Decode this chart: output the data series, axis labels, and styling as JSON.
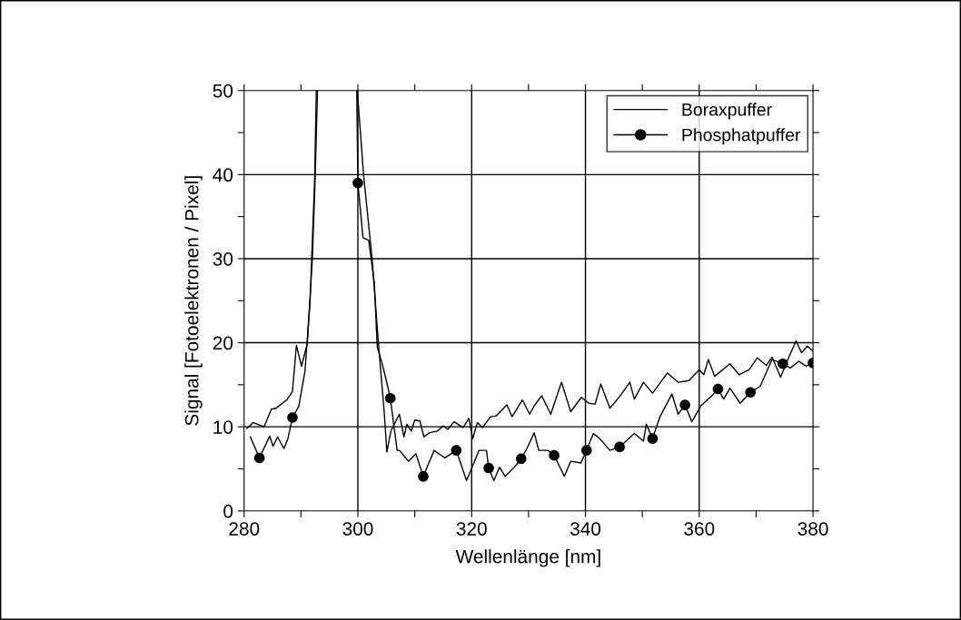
{
  "chart_data": {
    "type": "line",
    "xlabel": "Wellenlänge [nm]",
    "ylabel": "Signal [Fotoelektronen / Pixel]",
    "xlim": [
      280,
      380
    ],
    "xticks": [
      280,
      {
        "value": 290,
        "label": null
      },
      300,
      {
        "value": 310,
        "label": null
      },
      320,
      {
        "value": 330,
        "label": null
      },
      340,
      {
        "value": 350,
        "label": null
      },
      360,
      {
        "value": 370,
        "label": null
      },
      380
    ],
    "ylim": [
      0,
      50
    ],
    "yticks": [
      0,
      {
        "value": 5,
        "label": null
      },
      10,
      {
        "value": 15,
        "label": null
      },
      20,
      {
        "value": 25,
        "label": null
      },
      30,
      {
        "value": 35,
        "label": null
      },
      40,
      {
        "value": 45,
        "label": null
      },
      50
    ],
    "grid": true,
    "legend": "top right",
    "line_style": "solid",
    "series": [
      {
        "name": "Boraxpuffer",
        "color": "#000000",
        "marker": "none",
        "x": [
          280.5,
          281.6,
          283.5,
          284.8,
          285.6,
          287.5,
          288.5,
          289.2,
          290.1,
          291.1,
          292.0,
          292.5,
          292.9,
          296,
          299.9,
          301.0,
          302.5,
          303.6,
          304.6,
          305.1,
          305.8,
          307.3,
          308.1,
          308.6,
          309.4,
          310.0,
          310.9,
          311.6,
          312.6,
          314.0,
          315.0,
          315.8,
          316.9,
          318.5,
          319.5,
          320.2,
          321.0,
          321.9,
          323.3,
          324.3,
          326.2,
          327.1,
          328.9,
          330.2,
          331.0,
          332.3,
          333.9,
          335.8,
          337.4,
          339.3,
          340.6,
          341.7,
          342.7,
          344.3,
          346.0,
          347.8,
          348.6,
          350.2,
          351.8,
          354.4,
          356.3,
          358.2,
          360.0,
          360.8,
          361.6,
          362.7,
          365.4,
          367.0,
          368.8,
          370.2,
          371.8,
          372.8,
          374.3,
          375.7,
          377.0,
          378.0,
          379.0,
          380.0
        ],
        "values": [
          9.8,
          10.5,
          10.0,
          12.1,
          12.2,
          13.2,
          14.2,
          19.7,
          17.2,
          19.9,
          30.0,
          39.8,
          50,
          null,
          50,
          40,
          30,
          20,
          12,
          7.0,
          9.5,
          11.5,
          8.8,
          10.3,
          9.5,
          10.8,
          10.7,
          8.8,
          9.3,
          9.5,
          10.1,
          9.7,
          10.6,
          9.9,
          11.0,
          8.6,
          10.5,
          9.9,
          11.2,
          11.3,
          12.6,
          11.2,
          13.2,
          11.5,
          12.5,
          13.7,
          11.5,
          15.3,
          11.8,
          13.5,
          12.8,
          12.7,
          15.1,
          12.2,
          13.6,
          15.3,
          13.3,
          15.3,
          14.0,
          16.4,
          15.3,
          15.5,
          16.8,
          16.2,
          18.0,
          16.0,
          17.5,
          16.2,
          16.8,
          18.2,
          17.3,
          18.3,
          15.9,
          18.2,
          20.2,
          18.8,
          19.6,
          19.0
        ]
      },
      {
        "name": "Phosphatpuffer",
        "color": "#000000",
        "marker": "none",
        "x": [
          281.1,
          282.7,
          284.5,
          285.1,
          285.9,
          287.0,
          287.7,
          288.5,
          289.6,
          290.7,
          291.6,
          292.4,
          292.7,
          296,
          299.8,
          300.0,
          300.9,
          301.9,
          302.9,
          303.4,
          304.2,
          305.0,
          305.7,
          306.9,
          307.3,
          308.9,
          310.2,
          311.5,
          313.4,
          315.3,
          317.3,
          319.1,
          321.3,
          322.6,
          323.0,
          323.9,
          324.9,
          325.9,
          327.5,
          328.7,
          329.7,
          331.0,
          331.8,
          333.4,
          334.5,
          336.3,
          337.4,
          339.2,
          340.2,
          341.4,
          342.5,
          344.3,
          346.0,
          348.6,
          350.2,
          350.7,
          351.8,
          353.1,
          355.2,
          356.3,
          357.5,
          358.7,
          360.3,
          362.2,
          363.3,
          364.3,
          365.4,
          367.2,
          369.0,
          370.7,
          372.8,
          374.7,
          376.0,
          377.5,
          378.8,
          380.0
        ],
        "values": [
          8.8,
          6.3,
          8.9,
          7.7,
          8.8,
          7.4,
          8.6,
          11.1,
          12.4,
          16.6,
          24.9,
          39.4,
          50,
          null,
          50,
          39.0,
          32.5,
          32.2,
          27.1,
          19.5,
          17.7,
          15.5,
          13.4,
          7.2,
          7.2,
          5.9,
          6.8,
          4.1,
          7.2,
          6.3,
          7.2,
          3.6,
          7.2,
          7.2,
          5.1,
          3.6,
          5.2,
          4.1,
          5.2,
          6.2,
          7.4,
          9.3,
          7.2,
          7.2,
          6.6,
          4.1,
          5.9,
          5.7,
          7.2,
          9.2,
          8.6,
          7.2,
          7.6,
          9.2,
          8.3,
          10.3,
          8.6,
          11.2,
          13.9,
          11.5,
          12.6,
          10.6,
          12.5,
          13.7,
          14.5,
          13.3,
          14.6,
          12.8,
          14.1,
          14.8,
          18.0,
          17.5,
          17.0,
          17.8,
          17.2,
          17.6
        ]
      },
      {
        "type": "scatter",
        "color": "#000000",
        "marker": "circle",
        "x": [
          282.7,
          288.5,
          300.0,
          305.7,
          311.5,
          317.3,
          323.0,
          328.7,
          334.5,
          340.2,
          346.0,
          351.8,
          357.5,
          363.3,
          369.0,
          374.7,
          380.0
        ],
        "values": [
          6.3,
          11.1,
          39.0,
          13.4,
          4.1,
          7.2,
          5.1,
          6.2,
          6.6,
          7.2,
          7.6,
          8.6,
          12.6,
          14.5,
          14.1,
          17.5,
          17.6
        ]
      }
    ]
  }
}
